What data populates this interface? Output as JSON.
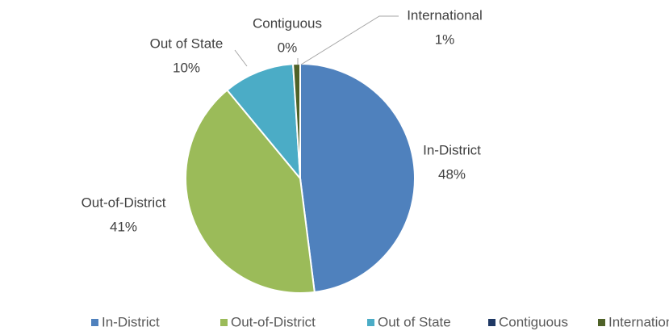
{
  "chart_data": {
    "type": "pie",
    "categories": [
      "In-District",
      "Out-of-District",
      "Out of State",
      "Contiguous",
      "International"
    ],
    "values": [
      48,
      41,
      10,
      0,
      1
    ],
    "value_labels": [
      "48%",
      "41%",
      "10%",
      "0%",
      "1%"
    ],
    "colors": [
      "#4f81bd",
      "#9bbb59",
      "#4bacc6",
      "#1f3864",
      "#4f6228"
    ],
    "legend": "bottom"
  }
}
